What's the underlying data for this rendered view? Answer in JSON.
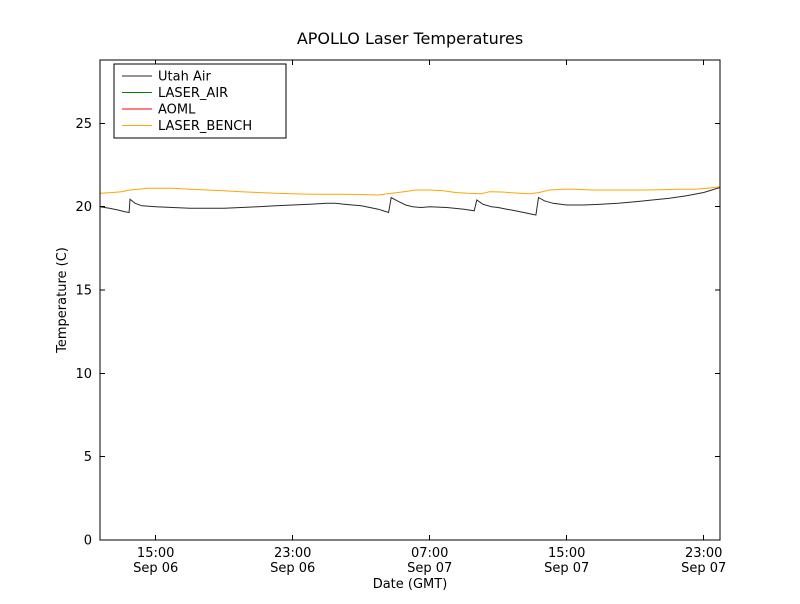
{
  "chart_data": {
    "type": "line",
    "title": "APOLLO Laser Temperatures",
    "xlabel": "Date (GMT)",
    "ylabel": "Temperature (C)",
    "ylim": [
      0,
      28.8
    ],
    "xlim_hours": [
      -0.25,
      35.95
    ],
    "x_unit": "hours since Sep 06 12:00 GMT",
    "grid": false,
    "legend_position": "upper left",
    "yticks": [
      0,
      5,
      10,
      15,
      20,
      25
    ],
    "xticks": [
      {
        "pos": 3,
        "time": "15:00",
        "date": "Sep 06"
      },
      {
        "pos": 11,
        "time": "23:00",
        "date": "Sep 06"
      },
      {
        "pos": 19,
        "time": "07:00",
        "date": "Sep 07"
      },
      {
        "pos": 27,
        "time": "15:00",
        "date": "Sep 07"
      },
      {
        "pos": 35,
        "time": "23:00",
        "date": "Sep 07"
      }
    ],
    "series": [
      {
        "name": "Utah Air",
        "color": "#2a2a2a",
        "visible": true,
        "x": [
          -0.25,
          0.3,
          0.8,
          1.2,
          1.45,
          1.5,
          1.8,
          2.2,
          3,
          4,
          5,
          6,
          7,
          8,
          9,
          10,
          11,
          12,
          13,
          13.5,
          14,
          15,
          16,
          16.6,
          16.75,
          17.1,
          17.6,
          18,
          18.5,
          19,
          20,
          21,
          21.6,
          21.75,
          22.1,
          22.6,
          23,
          23.5,
          24,
          24.7,
          25.2,
          25.35,
          25.7,
          26.2,
          27,
          28,
          29,
          30,
          31,
          32,
          33,
          34,
          35,
          35.95
        ],
        "values": [
          20.0,
          19.9,
          19.8,
          19.7,
          19.65,
          20.45,
          20.2,
          20.05,
          20.0,
          19.95,
          19.9,
          19.9,
          19.9,
          19.95,
          20.0,
          20.05,
          20.1,
          20.15,
          20.2,
          20.2,
          20.15,
          20.05,
          19.85,
          19.65,
          20.55,
          20.35,
          20.1,
          20.0,
          19.95,
          20.0,
          19.95,
          19.85,
          19.75,
          20.4,
          20.15,
          20.0,
          19.95,
          19.85,
          19.75,
          19.6,
          19.5,
          20.55,
          20.35,
          20.2,
          20.1,
          20.1,
          20.15,
          20.2,
          20.3,
          20.4,
          20.5,
          20.65,
          20.85,
          21.15
        ]
      },
      {
        "name": "LASER_AIR",
        "color": "#008000",
        "visible": false,
        "x": [],
        "values": []
      },
      {
        "name": "AOML",
        "color": "#ff0000",
        "visible": false,
        "x": [],
        "values": []
      },
      {
        "name": "LASER_BENCH",
        "color": "#ffa500",
        "visible": true,
        "x": [
          -0.25,
          0.5,
          1,
          1.5,
          2,
          2.5,
          3,
          4,
          5,
          6,
          7,
          8,
          9,
          10,
          11,
          12,
          13,
          14,
          15,
          16,
          16.8,
          17.5,
          18.2,
          19,
          19.8,
          20.5,
          21.2,
          22,
          22.5,
          23.2,
          24,
          24.8,
          25.4,
          26,
          26.8,
          27.5,
          28.5,
          29.5,
          30.5,
          31.5,
          32.5,
          33.5,
          34.5,
          35.2,
          35.95
        ],
        "values": [
          20.8,
          20.85,
          20.9,
          21.0,
          21.05,
          21.1,
          21.1,
          21.1,
          21.05,
          21.0,
          20.95,
          20.9,
          20.85,
          20.8,
          20.78,
          20.75,
          20.75,
          20.75,
          20.73,
          20.7,
          20.8,
          20.9,
          21.0,
          21.0,
          20.95,
          20.85,
          20.8,
          20.78,
          20.9,
          20.88,
          20.82,
          20.78,
          20.85,
          21.0,
          21.05,
          21.05,
          21.0,
          21.0,
          21.0,
          21.0,
          21.02,
          21.05,
          21.05,
          21.1,
          21.2
        ]
      }
    ]
  }
}
